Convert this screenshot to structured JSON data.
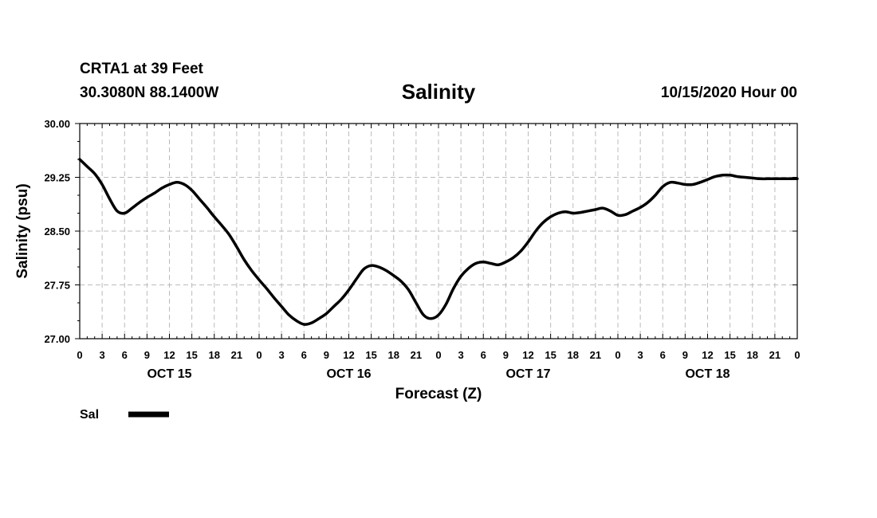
{
  "header": {
    "station": "CRTA1 at 39 Feet",
    "coords": "30.3080N 88.1400W",
    "title": "Salinity",
    "datetime": "10/15/2020 Hour 00"
  },
  "chart_data": {
    "type": "line",
    "title": "Salinity",
    "xlabel": "Forecast (Z)",
    "ylabel": "Salinity (psu)",
    "ylim": [
      27.0,
      30.0
    ],
    "xlim_hours": [
      0,
      96
    ],
    "yticks": [
      "27.00",
      "27.75",
      "28.50",
      "29.25",
      "30.00"
    ],
    "xtick_labels": [
      "0",
      "3",
      "6",
      "9",
      "12",
      "15",
      "18",
      "21",
      "0",
      "3",
      "6",
      "9",
      "12",
      "15",
      "18",
      "21",
      "0",
      "3",
      "6",
      "9",
      "12",
      "15",
      "18",
      "21",
      "0",
      "3",
      "6",
      "9",
      "12",
      "15",
      "18",
      "21",
      "0"
    ],
    "day_labels": [
      "OCT 15",
      "OCT 16",
      "OCT 17",
      "OCT 18"
    ],
    "grid": true,
    "legend_position": "bottom-left",
    "series": [
      {
        "name": "Sal",
        "color": "#000000",
        "x": [
          0,
          1,
          2,
          3,
          4,
          5,
          6,
          7,
          8,
          9,
          10,
          11,
          12,
          13,
          14,
          15,
          16,
          17,
          18,
          19,
          20,
          21,
          22,
          23,
          24,
          25,
          26,
          27,
          28,
          29,
          30,
          31,
          32,
          33,
          34,
          35,
          36,
          37,
          38,
          39,
          40,
          41,
          42,
          43,
          44,
          45,
          46,
          47,
          48,
          49,
          50,
          51,
          52,
          53,
          54,
          55,
          56,
          57,
          58,
          59,
          60,
          61,
          62,
          63,
          64,
          65,
          66,
          67,
          68,
          69,
          70,
          71,
          72,
          73,
          74,
          75,
          76,
          77,
          78,
          79,
          80,
          81,
          82,
          83,
          84,
          85,
          86,
          87,
          88,
          89,
          90,
          91,
          92,
          93,
          94,
          95,
          96
        ],
        "y": [
          29.5,
          29.4,
          29.3,
          29.15,
          28.95,
          28.78,
          28.75,
          28.82,
          28.9,
          28.97,
          29.03,
          29.1,
          29.15,
          29.18,
          29.15,
          29.07,
          28.95,
          28.83,
          28.7,
          28.58,
          28.45,
          28.28,
          28.1,
          27.95,
          27.82,
          27.7,
          27.57,
          27.45,
          27.33,
          27.25,
          27.2,
          27.22,
          27.28,
          27.35,
          27.45,
          27.55,
          27.68,
          27.83,
          27.97,
          28.02,
          28.0,
          27.95,
          27.88,
          27.8,
          27.68,
          27.5,
          27.33,
          27.28,
          27.33,
          27.48,
          27.7,
          27.87,
          27.98,
          28.05,
          28.07,
          28.05,
          28.03,
          28.07,
          28.13,
          28.22,
          28.35,
          28.5,
          28.62,
          28.7,
          28.75,
          28.77,
          28.75,
          28.76,
          28.78,
          28.8,
          28.82,
          28.78,
          28.72,
          28.73,
          28.78,
          28.83,
          28.9,
          29.0,
          29.12,
          29.18,
          29.17,
          29.15,
          29.15,
          29.18,
          29.22,
          29.26,
          29.28,
          29.28,
          29.26,
          29.25,
          29.24,
          29.23,
          29.23,
          29.23,
          29.23,
          29.23,
          29.23
        ]
      }
    ]
  }
}
